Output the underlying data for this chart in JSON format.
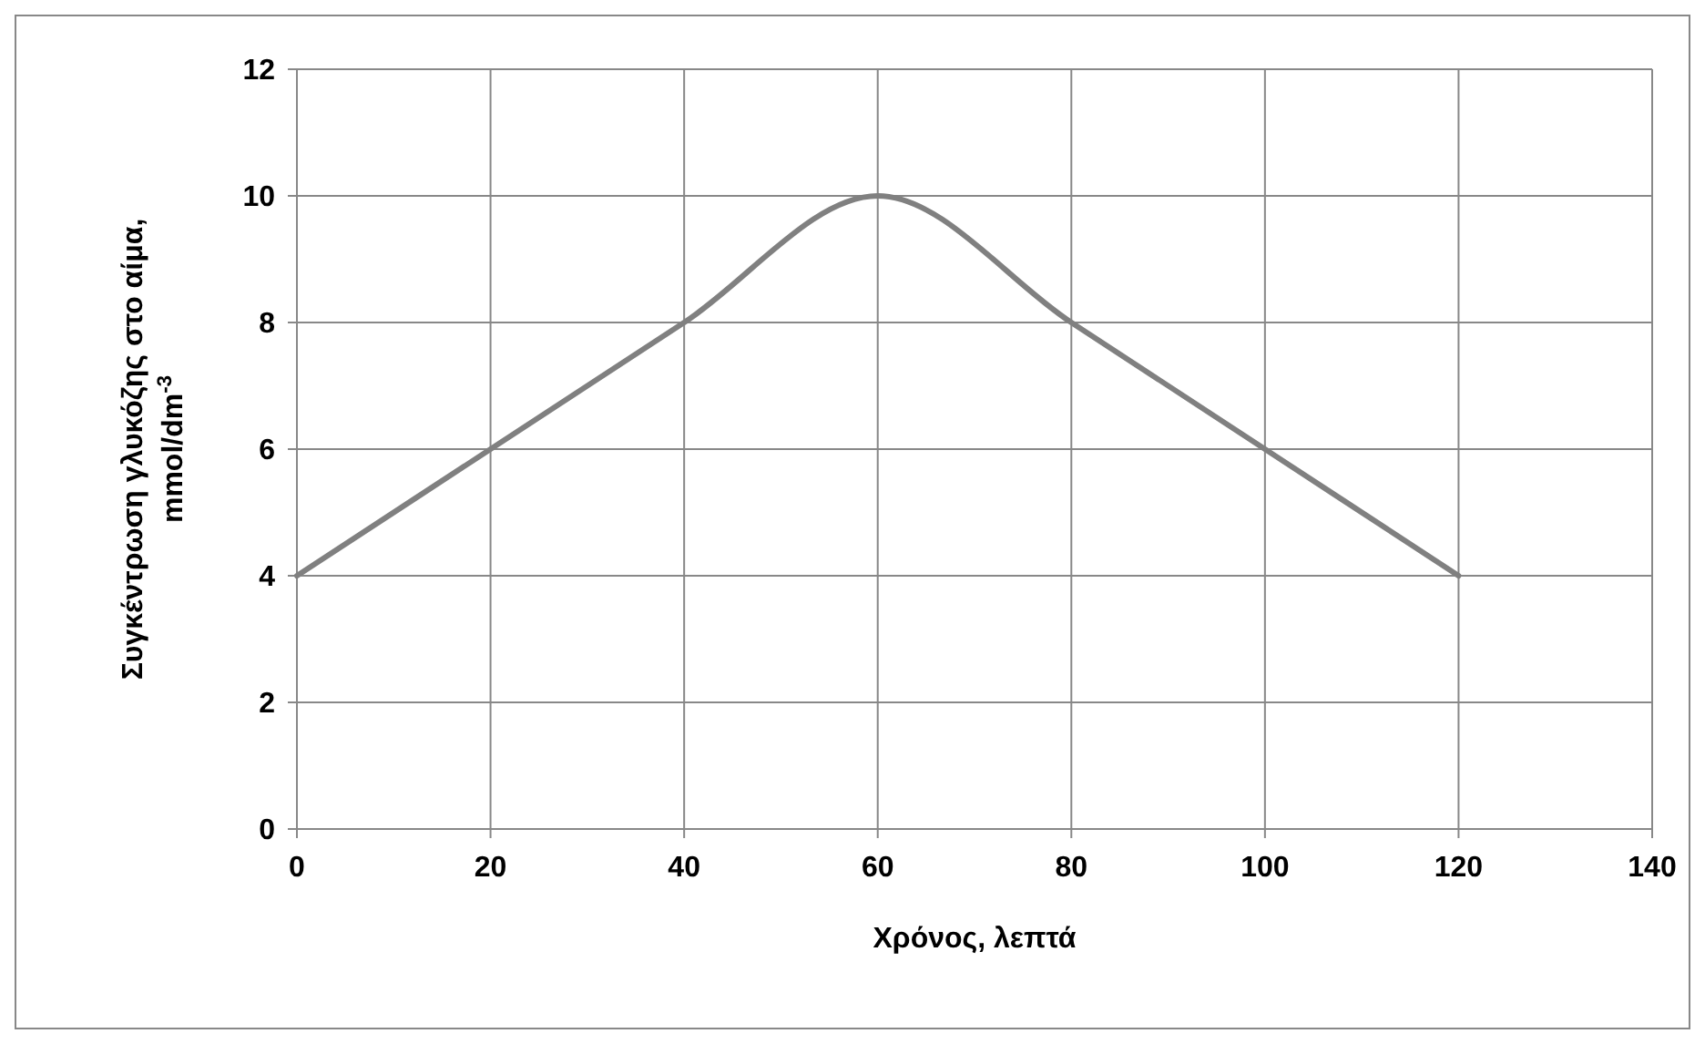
{
  "chart_data": {
    "type": "line",
    "xlabel": "Χρόνος, λεπτά",
    "ylabel": "Συγκέντρωση γλυκόζης στο αίμα,\nmmol/dm$^{-3}$",
    "x": [
      0,
      20,
      40,
      60,
      80,
      100,
      120
    ],
    "series": [
      {
        "color": "#808080",
        "values": [
          4,
          6,
          8,
          10,
          8,
          6,
          4
        ]
      }
    ],
    "xlim": [
      0,
      140
    ],
    "xticks": [
      0,
      20,
      40,
      60,
      80,
      100,
      120,
      140
    ],
    "ylim": [
      0,
      12
    ],
    "yticks": [
      0,
      2,
      4,
      6,
      8,
      10,
      12
    ],
    "grid": true
  }
}
